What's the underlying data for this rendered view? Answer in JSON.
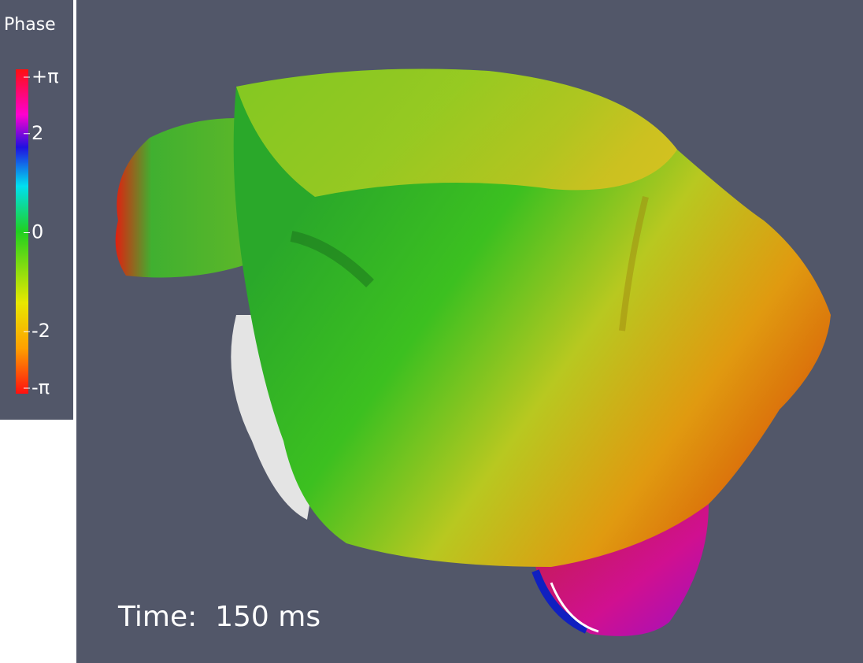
{
  "colorbar": {
    "title": "Phase",
    "range": [
      -3.14159,
      3.14159
    ],
    "ticks": [
      {
        "value": 3.14159,
        "label": "+π"
      },
      2,
      0,
      -2,
      {
        "value": -3.14159,
        "label": "-π"
      }
    ]
  },
  "time_label": "Time:  150 ms"
}
